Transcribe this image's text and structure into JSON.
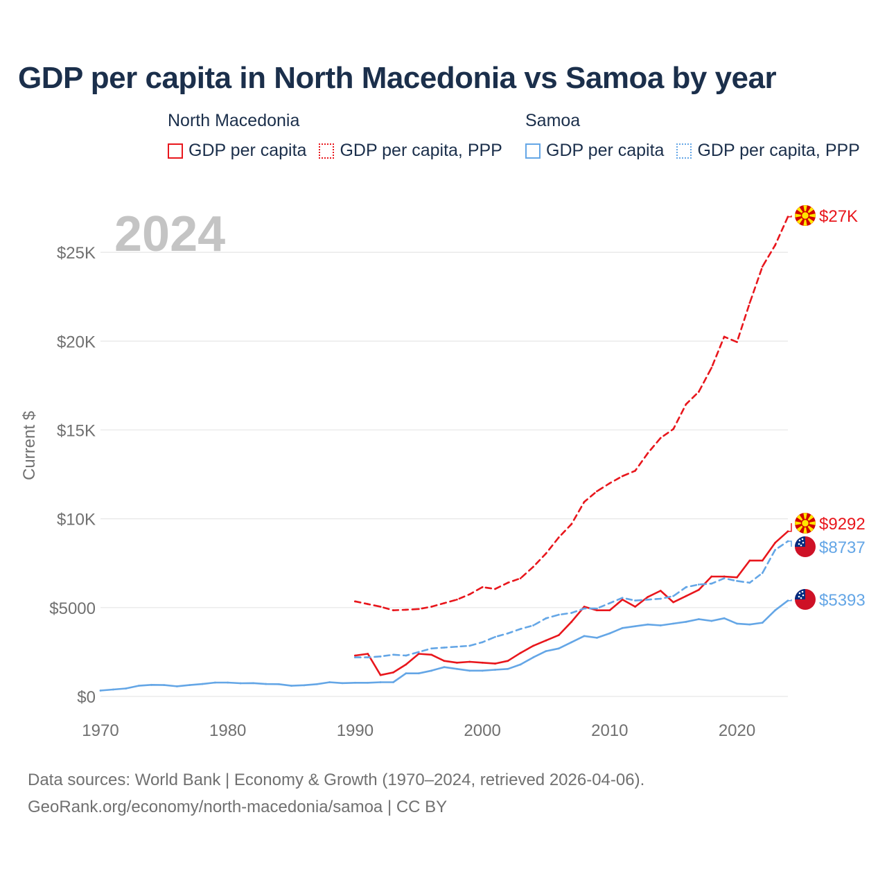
{
  "title": "GDP per capita in North Macedonia vs Samoa by year",
  "legend": {
    "north_macedonia": {
      "title": "North Macedonia",
      "gdp": "GDP per capita",
      "ppp": "GDP per capita, PPP"
    },
    "samoa": {
      "title": "Samoa",
      "gdp": "GDP per capita",
      "ppp": "GDP per capita, PPP"
    }
  },
  "source": {
    "line1": "Data sources: World Bank | Economy & Growth (1970–2024, retrieved 2026-04-06).",
    "line2": "GeoRank.org/economy/north-macedonia/samoa | CC BY"
  },
  "colors": {
    "north_macedonia": "#e8161c",
    "samoa": "#64a6e6",
    "title": "#1b2f4b",
    "axis_text": "#707070",
    "grid": "#e6e6e6",
    "year_watermark": "#c4c4c4"
  },
  "chart_data": {
    "type": "line",
    "title": "GDP per capita in North Macedonia vs Samoa by year",
    "watermark_year": "2024",
    "xlabel": "",
    "ylabel": "Current $",
    "xlim": [
      1970,
      2024
    ],
    "ylim": [
      0,
      27500
    ],
    "x_ticks": [
      1970,
      1980,
      1990,
      2000,
      2010,
      2020
    ],
    "x_tick_labels": [
      "1970",
      "1980",
      "1990",
      "2000",
      "2010",
      "2020"
    ],
    "y_ticks": [
      0,
      5000,
      10000,
      15000,
      20000,
      25000
    ],
    "y_tick_labels": [
      "$0",
      "$5000",
      "$10K",
      "$15K",
      "$20K",
      "$25K"
    ],
    "grid": true,
    "legend_position": "top",
    "series": [
      {
        "name": "North Macedonia GDP per capita, PPP",
        "country": "North Macedonia",
        "style": "dashed",
        "color": "#e8161c",
        "end_label": "$27K",
        "flag": "north-macedonia",
        "x": [
          1990,
          1991,
          1992,
          1993,
          1994,
          1995,
          1996,
          1997,
          1998,
          1999,
          2000,
          2001,
          2002,
          2003,
          2004,
          2005,
          2006,
          2007,
          2008,
          2009,
          2010,
          2011,
          2012,
          2013,
          2014,
          2015,
          2016,
          2017,
          2018,
          2019,
          2020,
          2021,
          2022,
          2023,
          2024
        ],
        "values": [
          5350,
          5200,
          5050,
          4850,
          4880,
          4920,
          5050,
          5250,
          5450,
          5750,
          6150,
          6050,
          6400,
          6650,
          7300,
          8050,
          8950,
          9700,
          10950,
          11550,
          12000,
          12400,
          12700,
          13700,
          14550,
          15050,
          16450,
          17150,
          18500,
          20250,
          19950,
          22150,
          24200,
          25400,
          27000
        ]
      },
      {
        "name": "North Macedonia GDP per capita",
        "country": "North Macedonia",
        "style": "solid",
        "color": "#e8161c",
        "end_label": "$9292",
        "flag": "north-macedonia",
        "x": [
          1990,
          1991,
          1992,
          1993,
          1994,
          1995,
          1996,
          1997,
          1998,
          1999,
          2000,
          2001,
          2002,
          2003,
          2004,
          2005,
          2006,
          2007,
          2008,
          2009,
          2010,
          2011,
          2012,
          2013,
          2014,
          2015,
          2016,
          2017,
          2018,
          2019,
          2020,
          2021,
          2022,
          2023,
          2024
        ],
        "values": [
          2300,
          2400,
          1200,
          1350,
          1800,
          2400,
          2350,
          2000,
          1900,
          1950,
          1900,
          1850,
          2000,
          2450,
          2850,
          3150,
          3450,
          4200,
          5050,
          4850,
          4850,
          5450,
          5050,
          5600,
          5950,
          5300,
          5650,
          6000,
          6750,
          6750,
          6700,
          7650,
          7650,
          8650,
          9292
        ]
      },
      {
        "name": "Samoa GDP per capita, PPP",
        "country": "Samoa",
        "style": "dashed",
        "color": "#64a6e6",
        "end_label": "$8737",
        "flag": "samoa",
        "x": [
          1990,
          1991,
          1992,
          1993,
          1994,
          1995,
          1996,
          1997,
          1998,
          1999,
          2000,
          2001,
          2002,
          2003,
          2004,
          2005,
          2006,
          2007,
          2008,
          2009,
          2010,
          2011,
          2012,
          2013,
          2014,
          2015,
          2016,
          2017,
          2018,
          2019,
          2020,
          2021,
          2022,
          2023,
          2024
        ],
        "values": [
          2200,
          2200,
          2250,
          2350,
          2300,
          2500,
          2700,
          2750,
          2800,
          2850,
          3050,
          3350,
          3550,
          3800,
          4000,
          4400,
          4600,
          4700,
          4950,
          4950,
          5250,
          5550,
          5400,
          5450,
          5500,
          5650,
          6150,
          6300,
          6350,
          6650,
          6500,
          6400,
          6950,
          8250,
          8737
        ]
      },
      {
        "name": "Samoa GDP per capita",
        "country": "Samoa",
        "style": "solid",
        "color": "#64a6e6",
        "end_label": "$5393",
        "flag": "samoa",
        "x": [
          1970,
          1971,
          1972,
          1973,
          1974,
          1975,
          1976,
          1977,
          1978,
          1979,
          1980,
          1981,
          1982,
          1983,
          1984,
          1985,
          1986,
          1987,
          1988,
          1989,
          1990,
          1991,
          1992,
          1993,
          1994,
          1995,
          1996,
          1997,
          1998,
          1999,
          2000,
          2001,
          2002,
          2003,
          2004,
          2005,
          2006,
          2007,
          2008,
          2009,
          2010,
          2011,
          2012,
          2013,
          2014,
          2015,
          2016,
          2017,
          2018,
          2019,
          2020,
          2021,
          2022,
          2023,
          2024
        ],
        "values": [
          330,
          390,
          450,
          600,
          650,
          640,
          570,
          640,
          700,
          780,
          780,
          740,
          750,
          700,
          690,
          600,
          630,
          690,
          800,
          750,
          770,
          770,
          800,
          800,
          1300,
          1300,
          1450,
          1650,
          1550,
          1450,
          1450,
          1500,
          1550,
          1800,
          2200,
          2550,
          2700,
          3050,
          3400,
          3300,
          3550,
          3850,
          3950,
          4050,
          4000,
          4100,
          4200,
          4350,
          4250,
          4400,
          4100,
          4050,
          4150,
          4850,
          5393
        ]
      }
    ]
  }
}
